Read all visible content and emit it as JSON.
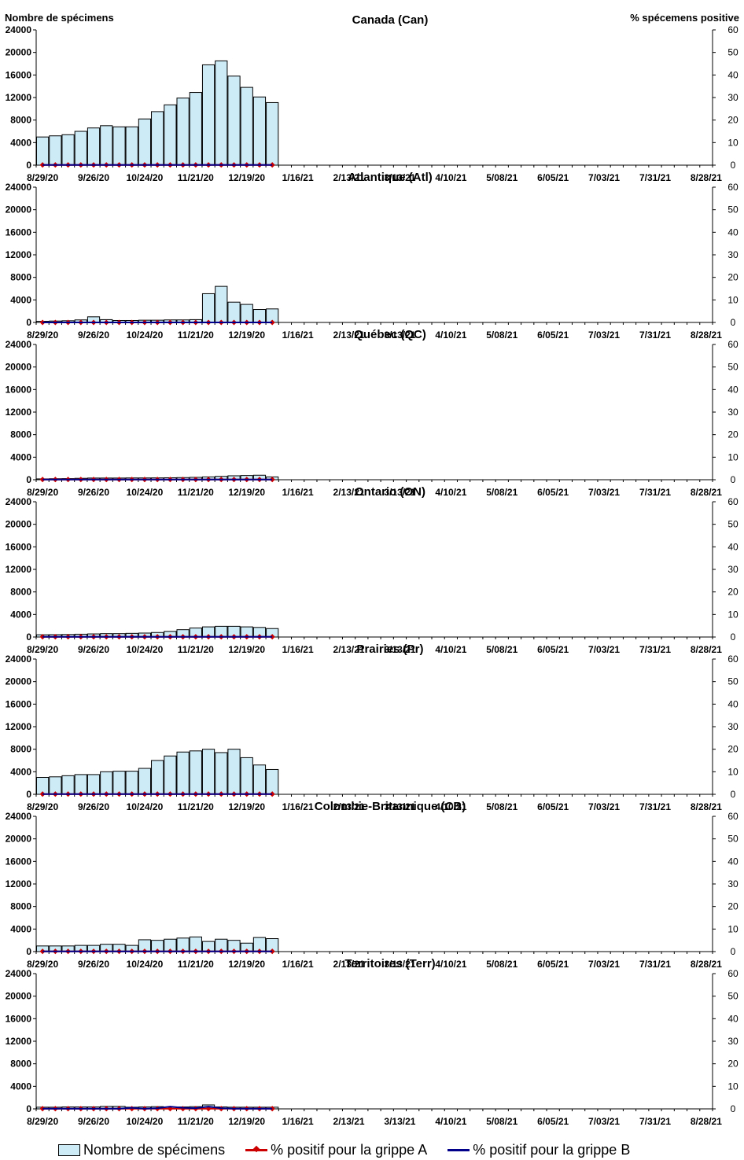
{
  "labels": {
    "left_axis": "Nombre de spécimens",
    "right_axis": "% spécemens positive"
  },
  "legend": {
    "bars": "Nombre de spécimens",
    "flu_a": "% positif pour la grippe A",
    "flu_b": "% positif pour la grippe B"
  },
  "colors": {
    "bar_fill": "#cdeaf7",
    "bar_stroke": "#000000",
    "flu_a": "#cc0000",
    "flu_b": "#00008b"
  },
  "chart_data": [
    {
      "type": "bar",
      "title": "Canada (Can)",
      "ylabel": "Nombre de spécimens",
      "y2label": "% spécemens positive",
      "ylim": [
        0,
        24000
      ],
      "y2lim": [
        0,
        60
      ],
      "yticks": [
        "0",
        "4000",
        "8000",
        "12000",
        "16000",
        "20000",
        "24000"
      ],
      "y2ticks": [
        "0",
        "10",
        "20",
        "30",
        "40",
        "50",
        "60"
      ],
      "xticks": [
        "8/29/20",
        "9/26/20",
        "10/24/20",
        "11/21/20",
        "12/19/20",
        "1/16/21",
        "2/13/21",
        "3/13/21",
        "4/10/21",
        "5/08/21",
        "6/05/21",
        "7/03/21",
        "7/31/21",
        "8/28/21"
      ],
      "series": [
        {
          "name": "Nombre de spécimens",
          "kind": "bar",
          "values": [
            5000,
            5200,
            5400,
            6000,
            6600,
            7000,
            6800,
            6800,
            8200,
            9500,
            10700,
            11900,
            12900,
            17800,
            18500,
            15800,
            13800,
            12100,
            11100
          ]
        },
        {
          "name": "% positif pour la grippe A",
          "kind": "line",
          "values": [
            0.1,
            0.1,
            0.1,
            0.1,
            0.1,
            0.1,
            0.1,
            0.1,
            0.1,
            0.1,
            0.1,
            0.1,
            0.1,
            0.1,
            0.1,
            0.1,
            0.1,
            0.1,
            0.1
          ]
        },
        {
          "name": "% positif pour la grippe B",
          "kind": "line",
          "values": [
            0.1,
            0.1,
            0.1,
            0.1,
            0.1,
            0.1,
            0.1,
            0.1,
            0.1,
            0.1,
            0.1,
            0.1,
            0.1,
            0.1,
            0.1,
            0.1,
            0.1,
            0.1,
            0.1
          ]
        }
      ]
    },
    {
      "type": "bar",
      "title": "Atlantique (Atl)",
      "ylim": [
        0,
        24000
      ],
      "y2lim": [
        0,
        60
      ],
      "yticks": [
        "0",
        "4000",
        "8000",
        "12000",
        "16000",
        "20000",
        "24000"
      ],
      "y2ticks": [
        "0",
        "10",
        "20",
        "30",
        "40",
        "50",
        "60"
      ],
      "xticks": [
        "8/29/20",
        "9/26/20",
        "10/24/20",
        "11/21/20",
        "12/19/20",
        "1/16/21",
        "2/13/21",
        "3/13/21",
        "4/10/21",
        "5/08/21",
        "6/05/21",
        "7/03/21",
        "7/31/21",
        "8/28/21"
      ],
      "series": [
        {
          "name": "Nombre de spécimens",
          "kind": "bar",
          "values": [
            200,
            250,
            300,
            450,
            1000,
            500,
            350,
            350,
            400,
            400,
            450,
            450,
            500,
            5100,
            6400,
            3600,
            3200,
            2300,
            2400
          ]
        },
        {
          "name": "% positif pour la grippe A",
          "kind": "line",
          "values": [
            0,
            0,
            0,
            0,
            0,
            0,
            0,
            0,
            0,
            0,
            0,
            0,
            0,
            0,
            0,
            0,
            0,
            0,
            0
          ]
        },
        {
          "name": "% positif pour la grippe B",
          "kind": "line",
          "values": [
            0,
            0,
            0,
            0,
            0,
            0,
            0,
            0,
            0,
            0,
            0,
            0,
            0,
            0,
            0,
            0,
            0,
            0,
            0
          ]
        }
      ]
    },
    {
      "type": "bar",
      "title": "Québec (QC)",
      "ylim": [
        0,
        24000
      ],
      "y2lim": [
        0,
        60
      ],
      "yticks": [
        "0",
        "4000",
        "8000",
        "12000",
        "16000",
        "20000",
        "24000"
      ],
      "y2ticks": [
        "0",
        "10",
        "20",
        "30",
        "40",
        "50",
        "60"
      ],
      "xticks": [
        "8/29/20",
        "9/26/20",
        "10/24/20",
        "11/21/20",
        "12/19/20",
        "1/16/21",
        "2/13/21",
        "3/13/21",
        "4/10/21",
        "5/08/21",
        "6/05/21",
        "7/03/21",
        "7/31/21",
        "8/28/21"
      ],
      "series": [
        {
          "name": "Nombre de spécimens",
          "kind": "bar",
          "values": [
            150,
            180,
            200,
            250,
            300,
            300,
            300,
            320,
            320,
            330,
            350,
            380,
            420,
            500,
            600,
            700,
            750,
            800,
            500
          ]
        },
        {
          "name": "% positif pour la grippe A",
          "kind": "line",
          "values": [
            0.1,
            0.1,
            0.1,
            0.1,
            0.1,
            0.1,
            0.1,
            0.1,
            0.1,
            0.1,
            0.1,
            0.1,
            0.1,
            0.1,
            0.1,
            0.1,
            0.1,
            0.1,
            0.1
          ]
        },
        {
          "name": "% positif pour la grippe B",
          "kind": "line",
          "values": [
            0.1,
            0.1,
            0.1,
            0.1,
            0.1,
            0.1,
            0.1,
            0.1,
            0.1,
            0.1,
            0.1,
            0.1,
            0.1,
            0.1,
            0.1,
            0.1,
            0.1,
            0.1,
            0.1
          ]
        }
      ]
    },
    {
      "type": "bar",
      "title": "Ontario (ON)",
      "ylim": [
        0,
        24000
      ],
      "y2lim": [
        0,
        60
      ],
      "yticks": [
        "0",
        "4000",
        "8000",
        "12000",
        "16000",
        "20000",
        "24000"
      ],
      "y2ticks": [
        "0",
        "10",
        "20",
        "30",
        "40",
        "50",
        "60"
      ],
      "xticks": [
        "8/29/20",
        "9/26/20",
        "10/24/20",
        "11/21/20",
        "12/19/20",
        "1/16/21",
        "2/13/21",
        "3/13/21",
        "4/10/21",
        "5/08/21",
        "6/05/21",
        "7/03/21",
        "7/31/21",
        "8/28/21"
      ],
      "series": [
        {
          "name": "Nombre de spécimens",
          "kind": "bar",
          "values": [
            400,
            420,
            450,
            500,
            550,
            600,
            600,
            650,
            700,
            800,
            1000,
            1300,
            1600,
            1800,
            1900,
            1900,
            1800,
            1700,
            1500
          ]
        },
        {
          "name": "% positif pour la grippe A",
          "kind": "line",
          "values": [
            0.1,
            0.1,
            0.1,
            0.1,
            0.1,
            0.1,
            0.1,
            0.1,
            0.1,
            0.1,
            0.1,
            0.1,
            0.1,
            0.1,
            0.1,
            0.1,
            0.1,
            0.1,
            0.1
          ]
        },
        {
          "name": "% positif pour la grippe B",
          "kind": "line",
          "values": [
            0.1,
            0.1,
            0.1,
            0.1,
            0.1,
            0.1,
            0.1,
            0.1,
            0.1,
            0.1,
            0.1,
            0.1,
            0.1,
            0.1,
            0.1,
            0.1,
            0.1,
            0.1,
            0.1
          ]
        }
      ]
    },
    {
      "type": "bar",
      "title": "Prairies (Pr)",
      "ylim": [
        0,
        24000
      ],
      "y2lim": [
        0,
        60
      ],
      "yticks": [
        "0",
        "4000",
        "8000",
        "12000",
        "16000",
        "20000",
        "24000"
      ],
      "y2ticks": [
        "0",
        "10",
        "20",
        "30",
        "40",
        "50",
        "60"
      ],
      "xticks": [
        "8/29/20",
        "9/26/20",
        "10/24/20",
        "11/21/20",
        "12/19/20",
        "1/16/21",
        "2/13/21",
        "3/13/21",
        "4/10/21",
        "5/08/21",
        "6/05/21",
        "7/03/21",
        "7/31/21",
        "8/28/21"
      ],
      "series": [
        {
          "name": "Nombre de spécimens",
          "kind": "bar",
          "values": [
            3000,
            3100,
            3300,
            3500,
            3500,
            4000,
            4100,
            4100,
            4600,
            6000,
            6800,
            7500,
            7700,
            8000,
            7400,
            8000,
            6500,
            5200,
            4400
          ]
        },
        {
          "name": "% positif pour la grippe A",
          "kind": "line",
          "values": [
            0.1,
            0.1,
            0.1,
            0.1,
            0.1,
            0.1,
            0.1,
            0.1,
            0.1,
            0.1,
            0.1,
            0.1,
            0.1,
            0.1,
            0.1,
            0.1,
            0.1,
            0.1,
            0.1
          ]
        },
        {
          "name": "% positif pour la grippe B",
          "kind": "line",
          "values": [
            0.1,
            0.1,
            0.1,
            0.1,
            0.1,
            0.1,
            0.1,
            0.1,
            0.1,
            0.1,
            0.1,
            0.1,
            0.1,
            0.1,
            0.1,
            0.1,
            0.1,
            0.1,
            0.1
          ]
        }
      ]
    },
    {
      "type": "bar",
      "title": "Colombie-Britannique (CB)",
      "ylim": [
        0,
        24000
      ],
      "y2lim": [
        0,
        60
      ],
      "yticks": [
        "0",
        "4000",
        "8000",
        "12000",
        "16000",
        "20000",
        "24000"
      ],
      "y2ticks": [
        "0",
        "10",
        "20",
        "30",
        "40",
        "50",
        "60"
      ],
      "xticks": [
        "8/29/20",
        "9/26/20",
        "10/24/20",
        "11/21/20",
        "12/19/20",
        "1/16/21",
        "2/13/21",
        "3/13/21",
        "4/10/21",
        "5/08/21",
        "6/05/21",
        "7/03/21",
        "7/31/21",
        "8/28/21"
      ],
      "series": [
        {
          "name": "Nombre de spécimens",
          "kind": "bar",
          "values": [
            1000,
            1000,
            1000,
            1100,
            1100,
            1300,
            1300,
            1100,
            2100,
            2000,
            2200,
            2400,
            2600,
            1800,
            2200,
            2000,
            1500,
            2500,
            2300
          ]
        },
        {
          "name": "% positif pour la grippe A",
          "kind": "line",
          "values": [
            0.1,
            0.1,
            0.1,
            0.1,
            0.1,
            0.1,
            0.1,
            0.1,
            0.1,
            0.1,
            0.1,
            0.1,
            0.1,
            0.1,
            0.1,
            0.1,
            0.1,
            0.1,
            0.1
          ]
        },
        {
          "name": "% positif pour la grippe B",
          "kind": "line",
          "values": [
            0.1,
            0.1,
            0.1,
            0.1,
            0.1,
            0.1,
            0.1,
            0.1,
            0.1,
            0.1,
            0.1,
            0.1,
            0.1,
            0.1,
            0.1,
            0.1,
            0.1,
            0.1,
            0.1
          ]
        }
      ]
    },
    {
      "type": "bar",
      "title": "Territoires (Terr)",
      "ylim": [
        0,
        24000
      ],
      "y2lim": [
        0,
        60
      ],
      "yticks": [
        "0",
        "4000",
        "8000",
        "12000",
        "16000",
        "20000",
        "24000"
      ],
      "y2ticks": [
        "0",
        "10",
        "20",
        "30",
        "40",
        "50",
        "60"
      ],
      "xticks": [
        "8/29/20",
        "9/26/20",
        "10/24/20",
        "11/21/20",
        "12/19/20",
        "1/16/21",
        "2/13/21",
        "3/13/21",
        "4/10/21",
        "5/08/21",
        "6/05/21",
        "7/03/21",
        "7/31/21",
        "8/28/21"
      ],
      "series": [
        {
          "name": "Nombre de spécimens",
          "kind": "bar",
          "values": [
            300,
            300,
            350,
            350,
            350,
            450,
            450,
            300,
            350,
            400,
            350,
            350,
            400,
            700,
            350,
            300,
            300,
            300,
            300
          ]
        },
        {
          "name": "% positif pour la grippe A",
          "kind": "line",
          "values": [
            0.1,
            0.1,
            0.1,
            0.1,
            0.1,
            0.1,
            0.1,
            0.1,
            0.1,
            0.1,
            0.1,
            0.1,
            0.1,
            0.1,
            0.1,
            0.1,
            0.1,
            0.1,
            0.1
          ]
        },
        {
          "name": "% positif pour la grippe B",
          "kind": "line",
          "values": [
            0.1,
            0.1,
            0.1,
            0.1,
            0.1,
            0.1,
            0.1,
            0.5,
            0.1,
            0.3,
            1.0,
            0.5,
            0.3,
            1.0,
            0.3,
            0.1,
            0.1,
            0.1,
            0.1
          ]
        }
      ]
    }
  ]
}
